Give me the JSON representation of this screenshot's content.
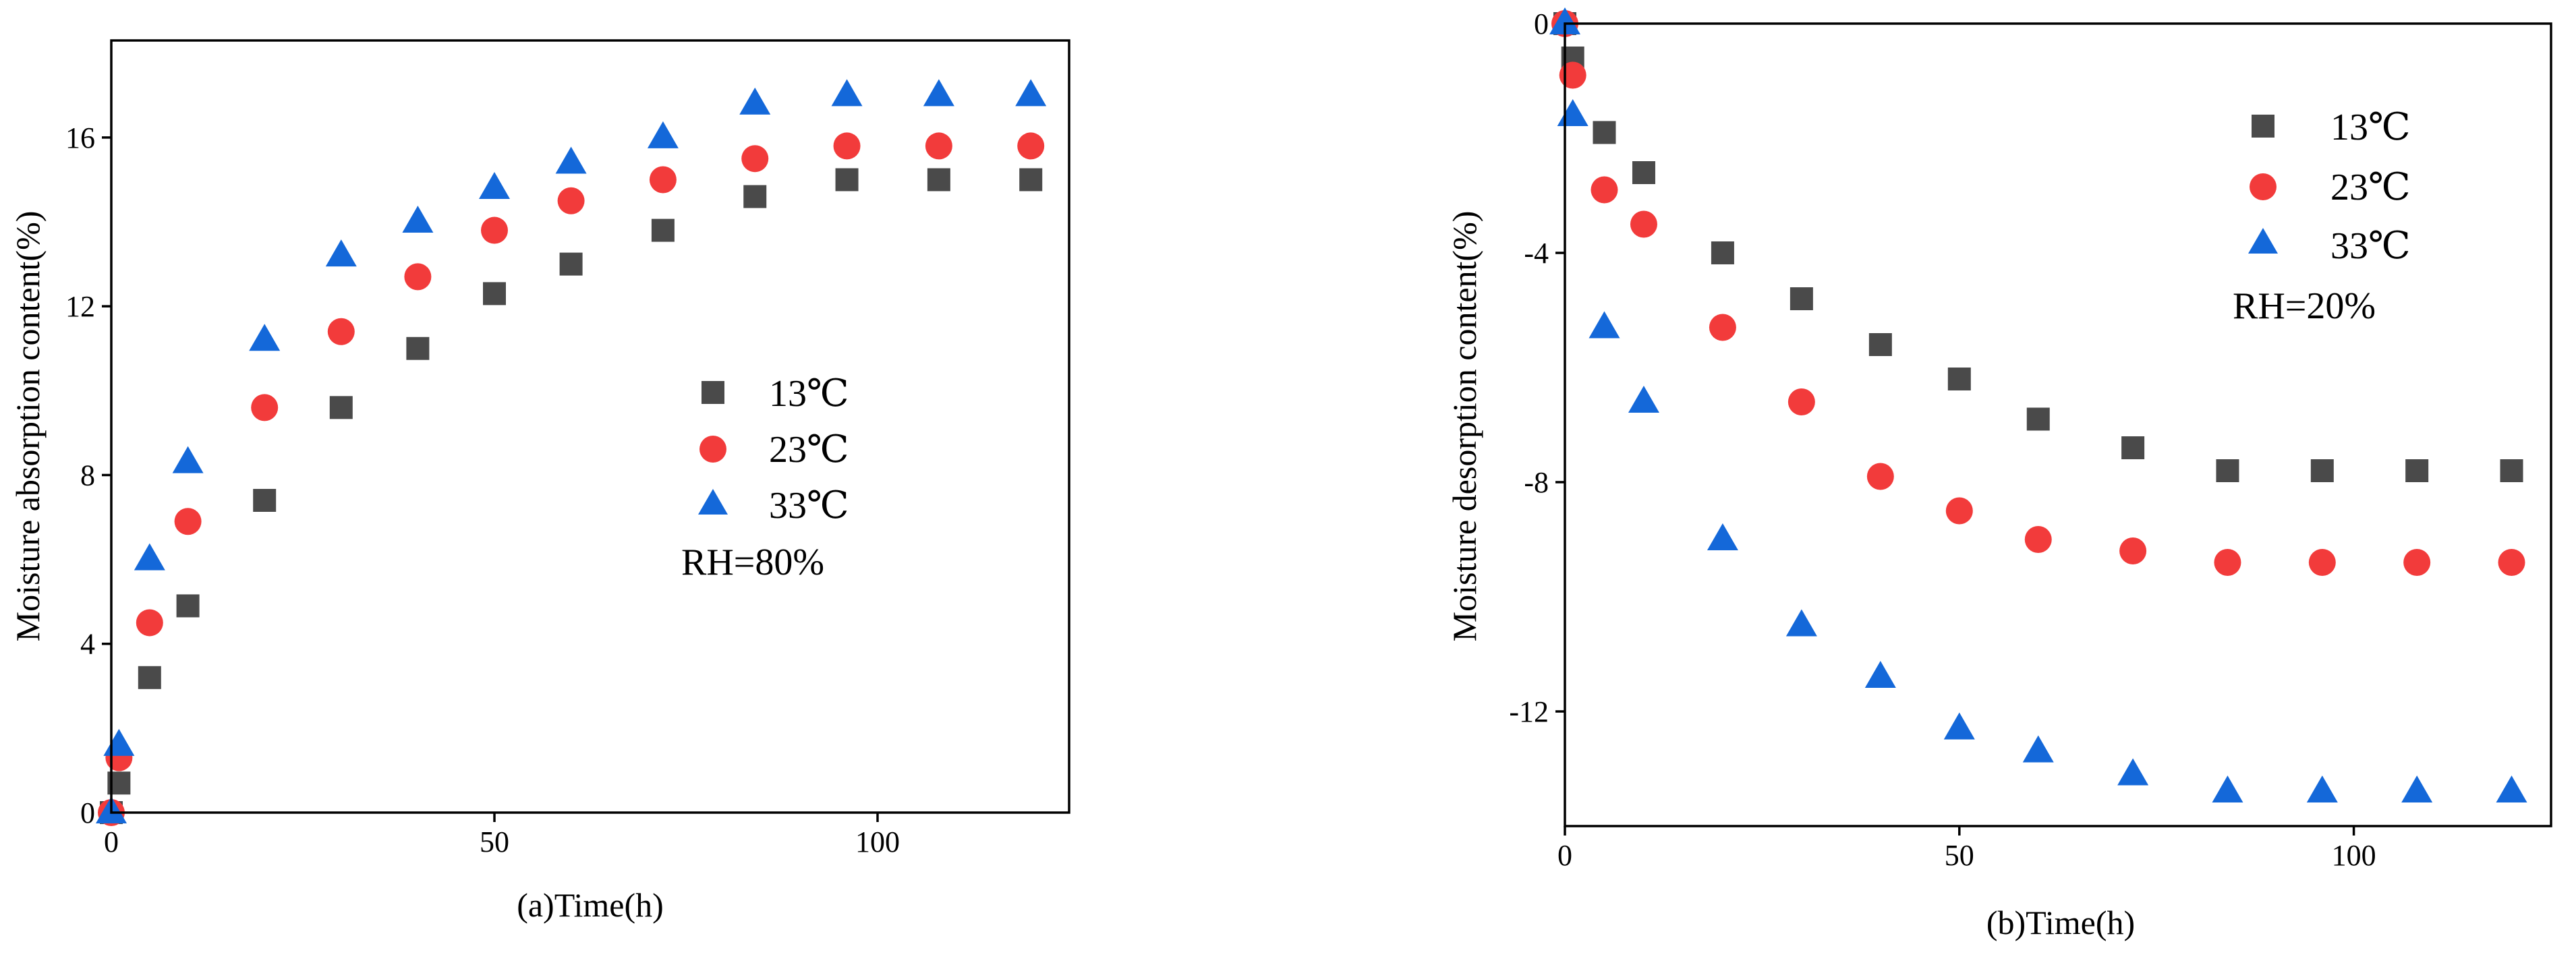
{
  "chart_data": [
    {
      "id": "a",
      "type": "scatter",
      "xlabel": "(a)Time(h)",
      "ylabel": "Moisture absorption content(%)",
      "xlim": [
        0,
        125
      ],
      "ylim": [
        0,
        18.3
      ],
      "xticks": [
        0,
        50,
        100
      ],
      "yticks": [
        0,
        4,
        8,
        12,
        16
      ],
      "x": [
        0,
        1,
        5,
        10,
        20,
        30,
        40,
        50,
        60,
        72,
        84,
        96,
        108,
        120
      ],
      "series": [
        {
          "name": "13℃",
          "marker": "square",
          "color": "#4a4a4a",
          "values": [
            0,
            0.7,
            3.2,
            4.9,
            7.4,
            9.6,
            11.0,
            12.3,
            13.0,
            13.8,
            14.6,
            15.0,
            15.0,
            15.0
          ]
        },
        {
          "name": "23℃",
          "marker": "circle",
          "color": "#f23b3b",
          "values": [
            0,
            1.3,
            4.5,
            6.9,
            9.6,
            11.4,
            12.7,
            13.8,
            14.5,
            15.0,
            15.5,
            15.8,
            15.8,
            15.8
          ]
        },
        {
          "name": "33℃",
          "marker": "triangle",
          "color": "#1468d9",
          "values": [
            0,
            1.6,
            6.0,
            8.3,
            11.2,
            13.2,
            14.0,
            14.8,
            15.4,
            16.0,
            16.8,
            17.0,
            17.0,
            17.0
          ]
        }
      ],
      "legend_position": "center",
      "annotation": "RH=80%"
    },
    {
      "id": "b",
      "type": "scatter",
      "xlabel": "(b)Time(h)",
      "ylabel": "Moisture desorption content(%)",
      "xlim": [
        0,
        125
      ],
      "ylim": [
        -14,
        0
      ],
      "xticks": [
        0,
        50,
        100
      ],
      "yticks": [
        0,
        -4,
        -8,
        -12
      ],
      "x": [
        0,
        1,
        5,
        10,
        20,
        30,
        40,
        50,
        60,
        72,
        84,
        96,
        108,
        120
      ],
      "series": [
        {
          "name": "13℃",
          "marker": "square",
          "color": "#4a4a4a",
          "values": [
            0,
            -0.6,
            -1.9,
            -2.6,
            -4.0,
            -4.8,
            -5.6,
            -6.2,
            -6.9,
            -7.4,
            -7.8,
            -7.8,
            -7.8,
            -7.8
          ]
        },
        {
          "name": "23℃",
          "marker": "circle",
          "color": "#f23b3b",
          "values": [
            0,
            -0.9,
            -2.9,
            -3.5,
            -5.3,
            -6.6,
            -7.9,
            -8.5,
            -9.0,
            -9.2,
            -9.4,
            -9.4,
            -9.4,
            -9.4
          ]
        },
        {
          "name": "33℃",
          "marker": "triangle",
          "color": "#1468d9",
          "values": [
            0,
            -1.6,
            -5.3,
            -6.6,
            -9.0,
            -10.5,
            -11.4,
            -12.3,
            -12.7,
            -13.1,
            -13.4,
            -13.4,
            -13.4,
            -13.4
          ]
        }
      ],
      "legend_position": "top-right",
      "annotation": "RH=20%"
    }
  ]
}
